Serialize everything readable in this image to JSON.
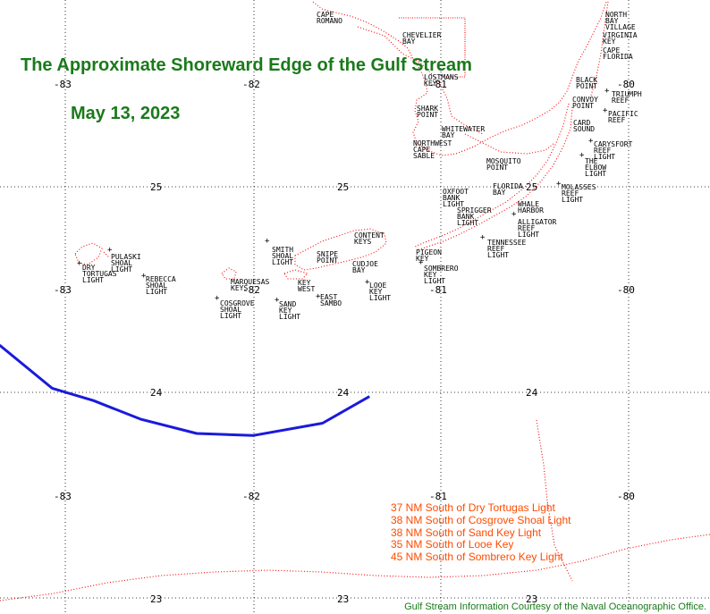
{
  "title": "The Approximate Shoreward Edge of the Gulf Stream",
  "date": "May 13, 2023",
  "credit": "Gulf Stream Information Courtesy of the Naval Oceanographic Office.",
  "distances": [
    "37 NM South of Dry Tortugas Light",
    "38 NM South of Cosgrove Shoal Light",
    "38 NM South of Sand Key Light",
    "35 NM South of Looe Key",
    "45 NM South of Sombrero Key Light"
  ],
  "grid_labels": {
    "lon_83": "-83",
    "lon_82": "-82",
    "lon_81": "-81",
    "lon_80": "-80",
    "lat_25": "25",
    "lat_24": "24",
    "lat_23": "23"
  },
  "places": {
    "cape_romano": "CAPE\nROMANO",
    "chevelier_bay": "CHEVELIER\nBAY",
    "lostmans": "LOSTMANS\nKEY",
    "shark_point": "SHARK\nPOINT",
    "whitewater_bay": "WHITEWATER\nBAY",
    "northwest_cape_sable": "NORTHWEST\nCAPE\nSABLE",
    "mosquito_point": "MOSQUITO\nPOINT",
    "north_bay_village": "NORTH\nBAY\nVILLAGE",
    "virginia_key": "VIRGINIA\nKEY",
    "cape_florida": "CAPE\nFLORIDA",
    "black_point": "BLACK\nPOINT",
    "triumph_reef": "TRIUMPH\nREEF",
    "convoy_point": "CONVOY\nPOINT",
    "pacific_reef": "PACIFIC\nREEF",
    "card_sound": "CARD\nSOUND",
    "carysfort_reef_light": "CARYSFORT\nREEF\nLIGHT",
    "elbow_light": "THE\nELBOW\nLIGHT",
    "molasses_reef_light": "MOLASSES\nREEF\nLIGHT",
    "florida_bay": "FLORIDA\nBAY",
    "oxfoot_bank_light": "OXFOOT\nBANK\nLIGHT",
    "sprigger_bank_light": "SPRIGGER\nBANK\nLIGHT",
    "whale_harbor": "WHALE\nHARBOR",
    "alligator_reef_light": "ALLIGATOR\nREEF\nLIGHT",
    "tennessee_reef_light": "TENNESSEE\nREEF\nLIGHT",
    "pigeon_key": "PIGEON\nKEY",
    "sombrero_key_light": "SOMBRERO\nKEY\nLIGHT",
    "content_keys": "CONTENT\nKEYS",
    "snipe_point": "SNIPE\nPOINT",
    "cudjoe_bay": "CUDJOE\nBAY",
    "looe_key_light": "LOOE\nKEY\nLIGHT",
    "smith_shoal_light": "SMITH\nSHOAL\nLIGHT",
    "key_west": "KEY\nWEST",
    "east_sambo": "EAST\nSAMBO",
    "sand_key_light": "SAND\nKEY\nLIGHT",
    "marquesas_keys": "MARQUESAS\nKEYS",
    "cosgrove_shoal_light": "COSGROVE\nSHOAL\nLIGHT",
    "pulaski_shoal_light": "PULASKI\nSHOAL\nLIGHT",
    "dry_tortugas_light": "DRY\nTORTUGAS\nLIGHT",
    "rebecca_shoal_light": "REBECCA\nSHOAL\nLIGHT"
  },
  "colors": {
    "gulf_stream_line": "#1a1adc",
    "coastline": "#ff0000",
    "title": "#1a7a1a",
    "distance_text": "#ff4b00",
    "grid": "#000000"
  },
  "gulf_stream_edge": [
    {
      "lon": -83.35,
      "lat": 24.23
    },
    {
      "lon": -83.07,
      "lat": 24.02
    },
    {
      "lon": -82.85,
      "lat": 23.96
    },
    {
      "lon": -82.6,
      "lat": 23.87
    },
    {
      "lon": -82.3,
      "lat": 23.8
    },
    {
      "lon": -82.0,
      "lat": 23.79
    },
    {
      "lon": -81.63,
      "lat": 23.85
    },
    {
      "lon": -81.38,
      "lat": 23.98
    }
  ]
}
